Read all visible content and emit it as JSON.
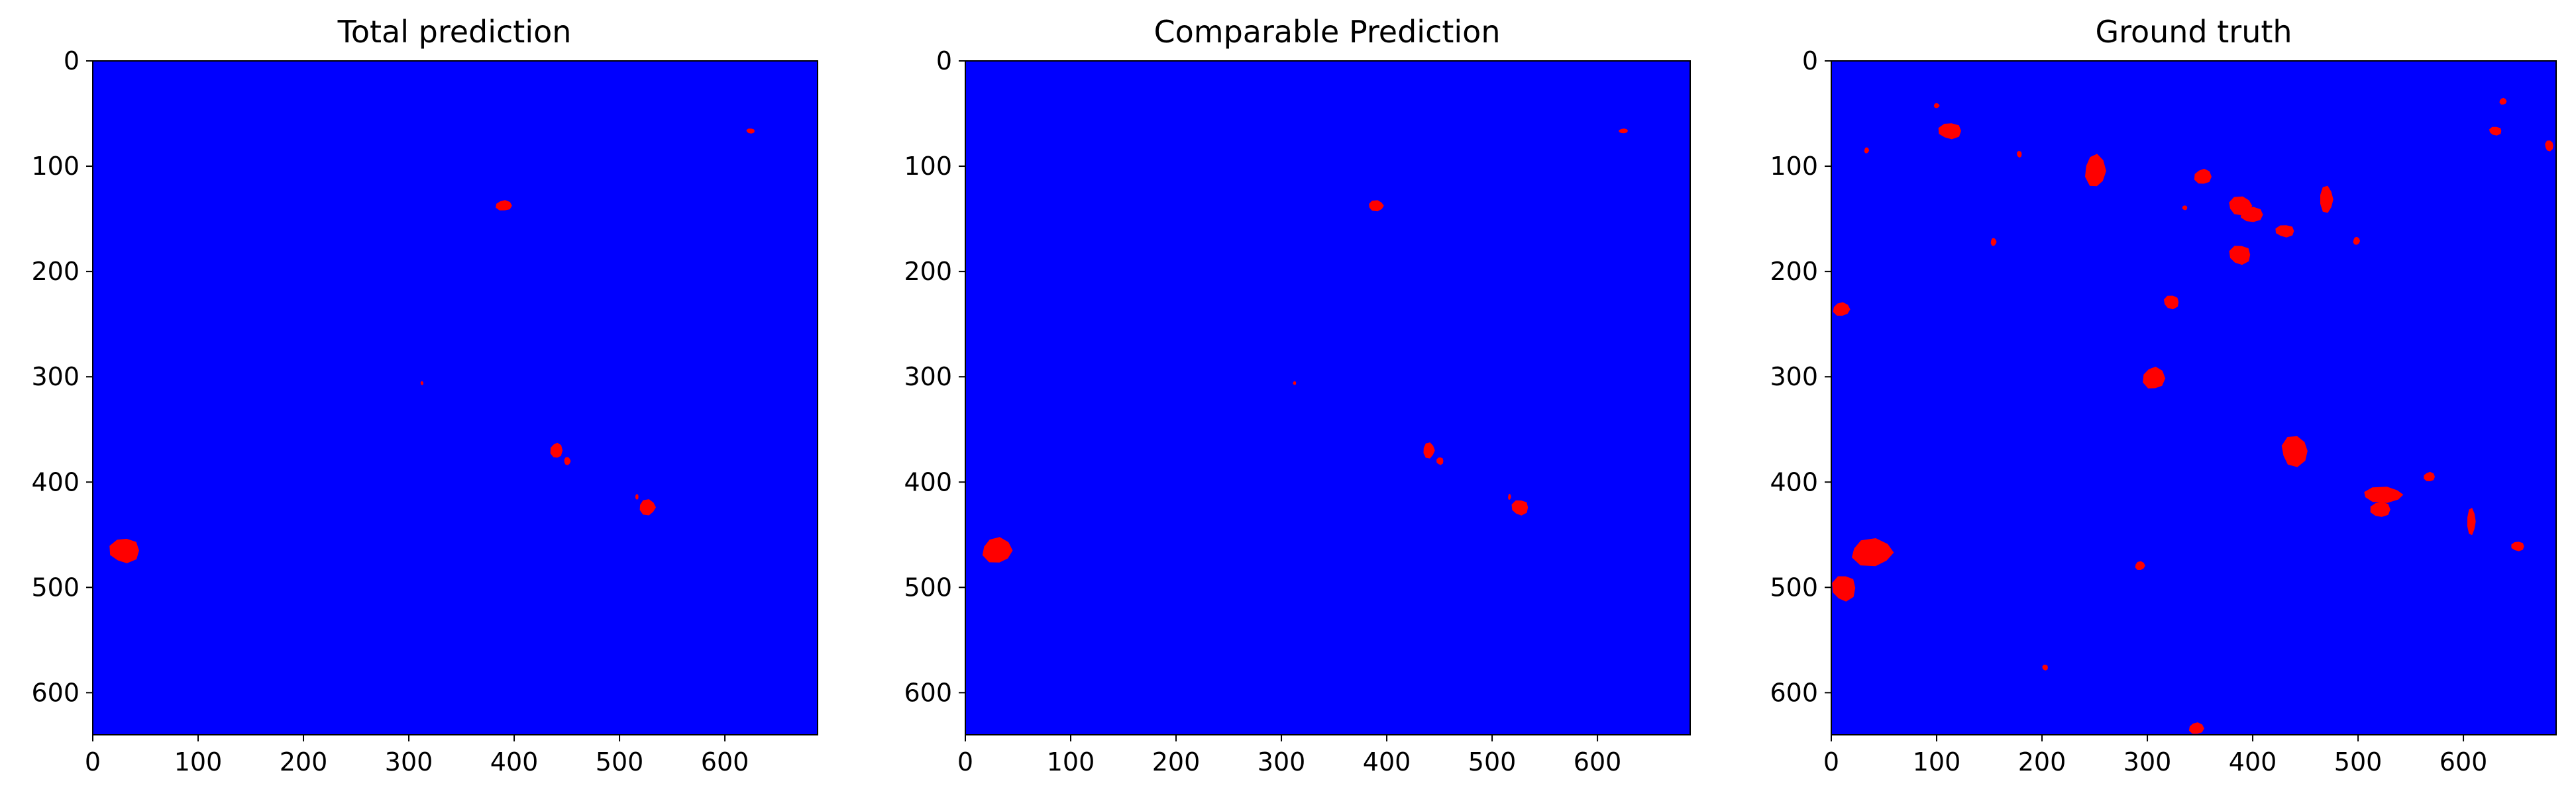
{
  "figure": {
    "background": "#ffffff",
    "colors": {
      "background_class": "#0000ff",
      "foreground_class": "#ff0000",
      "axes_edge": "#000000"
    }
  },
  "chart_data": [
    {
      "type": "heatmap",
      "title": "Total prediction",
      "xlabel": "",
      "ylabel": "",
      "xlim": [
        0,
        688
      ],
      "ylim": [
        640,
        0
      ],
      "xticks": [
        0,
        100,
        200,
        300,
        400,
        500,
        600
      ],
      "yticks": [
        0,
        100,
        200,
        300,
        400,
        500,
        600
      ],
      "grid": false,
      "regions": [
        {
          "shape": "blob",
          "x": [
            620,
            629
          ],
          "y": [
            64,
            69
          ]
        },
        {
          "shape": "blob",
          "x": [
            382,
            398
          ],
          "y": [
            132,
            143
          ]
        },
        {
          "shape": "blob",
          "x": [
            311,
            314
          ],
          "y": [
            304,
            308
          ]
        },
        {
          "shape": "blob",
          "x": [
            434,
            446
          ],
          "y": [
            362,
            378
          ]
        },
        {
          "shape": "blob",
          "x": [
            447,
            454
          ],
          "y": [
            376,
            384
          ]
        },
        {
          "shape": "blob",
          "x": [
            515,
            518
          ],
          "y": [
            411,
            417
          ]
        },
        {
          "shape": "blob",
          "x": [
            518,
            535
          ],
          "y": [
            416,
            432
          ]
        },
        {
          "shape": "blob",
          "x": [
            15,
            45
          ],
          "y": [
            452,
            478
          ]
        }
      ]
    },
    {
      "type": "heatmap",
      "title": "Comparable Prediction",
      "xlabel": "",
      "ylabel": "",
      "xlim": [
        0,
        688
      ],
      "ylim": [
        640,
        0
      ],
      "xticks": [
        0,
        100,
        200,
        300,
        400,
        500,
        600
      ],
      "yticks": [
        0,
        100,
        200,
        300,
        400,
        500,
        600
      ],
      "grid": false,
      "regions": [
        {
          "shape": "blob",
          "x": [
            620,
            629
          ],
          "y": [
            64,
            69
          ]
        },
        {
          "shape": "blob",
          "x": [
            382,
            398
          ],
          "y": [
            132,
            143
          ]
        },
        {
          "shape": "blob",
          "x": [
            311,
            314
          ],
          "y": [
            304,
            308
          ]
        },
        {
          "shape": "blob",
          "x": [
            434,
            446
          ],
          "y": [
            362,
            378
          ]
        },
        {
          "shape": "blob",
          "x": [
            447,
            454
          ],
          "y": [
            376,
            384
          ]
        },
        {
          "shape": "blob",
          "x": [
            515,
            518
          ],
          "y": [
            411,
            417
          ]
        },
        {
          "shape": "blob",
          "x": [
            518,
            535
          ],
          "y": [
            416,
            432
          ]
        },
        {
          "shape": "blob",
          "x": [
            15,
            45
          ],
          "y": [
            452,
            478
          ]
        }
      ]
    },
    {
      "type": "heatmap",
      "title": "Ground truth",
      "xlabel": "",
      "ylabel": "",
      "xlim": [
        0,
        688
      ],
      "ylim": [
        640,
        0
      ],
      "xticks": [
        0,
        100,
        200,
        300,
        400,
        500,
        600
      ],
      "yticks": [
        0,
        100,
        200,
        300,
        400,
        500,
        600
      ],
      "grid": false,
      "regions": [
        {
          "shape": "blob",
          "x": [
            97,
            103
          ],
          "y": [
            40,
            45
          ]
        },
        {
          "shape": "blob",
          "x": [
            101,
            124
          ],
          "y": [
            58,
            75
          ]
        },
        {
          "shape": "blob",
          "x": [
            31,
            36
          ],
          "y": [
            82,
            88
          ]
        },
        {
          "shape": "blob",
          "x": [
            176,
            181
          ],
          "y": [
            85,
            92
          ]
        },
        {
          "shape": "blob",
          "x": [
            240,
            261
          ],
          "y": [
            88,
            121
          ]
        },
        {
          "shape": "blob",
          "x": [
            624,
            637
          ],
          "y": [
            62,
            71
          ]
        },
        {
          "shape": "blob",
          "x": [
            634,
            641
          ],
          "y": [
            35,
            42
          ]
        },
        {
          "shape": "blob",
          "x": [
            677,
            686
          ],
          "y": [
            75,
            86
          ]
        },
        {
          "shape": "blob",
          "x": [
            344,
            361
          ],
          "y": [
            102,
            118
          ]
        },
        {
          "shape": "blob",
          "x": [
            376,
            401
          ],
          "y": [
            128,
            147
          ]
        },
        {
          "shape": "blob",
          "x": [
            388,
            410
          ],
          "y": [
            138,
            154
          ]
        },
        {
          "shape": "blob",
          "x": [
            463,
            477
          ],
          "y": [
            118,
            145
          ]
        },
        {
          "shape": "blob",
          "x": [
            333,
            338
          ],
          "y": [
            137,
            142
          ]
        },
        {
          "shape": "blob",
          "x": [
            151,
            157
          ],
          "y": [
            168,
            176
          ]
        },
        {
          "shape": "blob",
          "x": [
            421,
            440
          ],
          "y": [
            155,
            168
          ]
        },
        {
          "shape": "blob",
          "x": [
            495,
            502
          ],
          "y": [
            167,
            175
          ]
        },
        {
          "shape": "blob",
          "x": [
            377,
            399
          ],
          "y": [
            174,
            194
          ]
        },
        {
          "shape": "blob",
          "x": [
            1,
            18
          ],
          "y": [
            229,
            243
          ]
        },
        {
          "shape": "blob",
          "x": [
            315,
            331
          ],
          "y": [
            222,
            236
          ]
        },
        {
          "shape": "blob",
          "x": [
            295,
            317
          ],
          "y": [
            290,
            313
          ]
        },
        {
          "shape": "blob",
          "x": [
            426,
            454
          ],
          "y": [
            355,
            386
          ]
        },
        {
          "shape": "blob",
          "x": [
            562,
            573
          ],
          "y": [
            390,
            400
          ]
        },
        {
          "shape": "blob",
          "x": [
            503,
            545
          ],
          "y": [
            404,
            420
          ]
        },
        {
          "shape": "blob",
          "x": [
            511,
            531
          ],
          "y": [
            418,
            434
          ]
        },
        {
          "shape": "blob",
          "x": [
            603,
            612
          ],
          "y": [
            424,
            451
          ]
        },
        {
          "shape": "blob",
          "x": [
            645,
            658
          ],
          "y": [
            456,
            466
          ]
        },
        {
          "shape": "blob",
          "x": [
            17,
            60
          ],
          "y": [
            453,
            481
          ]
        },
        {
          "shape": "blob",
          "x": [
            0,
            24
          ],
          "y": [
            487,
            514
          ]
        },
        {
          "shape": "blob",
          "x": [
            288,
            298
          ],
          "y": [
            475,
            484
          ]
        },
        {
          "shape": "blob",
          "x": [
            200,
            206
          ],
          "y": [
            573,
            579
          ]
        },
        {
          "shape": "blob",
          "x": [
            339,
            354
          ],
          "y": [
            628,
            640
          ]
        }
      ]
    }
  ]
}
